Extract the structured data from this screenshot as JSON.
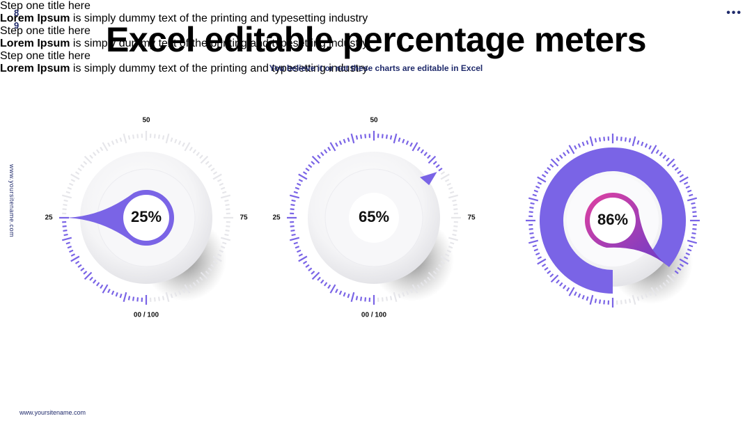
{
  "page_number": "89",
  "title": "Excel editable percentage meters",
  "subtitle": "You believe it or not these charts are editable in Excel",
  "side_url": "www.yoursitename.com",
  "footer_url": "www.yoursitename.com",
  "chart_data": [
    {
      "type": "gauge",
      "style": "pointer",
      "value": 25,
      "value_label": "25%",
      "color": "#7a64e6",
      "ylim": [
        0,
        100
      ],
      "yticks": [
        {
          "value": 0,
          "label": "00 / 100"
        },
        25,
        50,
        75
      ],
      "step_title": "Step one title here",
      "description_bold": "Lorem Ipsum",
      "description": "is simply dummy text of the printing and typesetting industry"
    },
    {
      "type": "gauge",
      "style": "needle",
      "value": 65,
      "value_label": "65%",
      "color": "#7a64e6",
      "ylim": [
        0,
        100
      ],
      "yticks": [
        {
          "value": 0,
          "label": "00 / 100"
        },
        25,
        50,
        75
      ],
      "step_title": "Step one title here",
      "description_bold": "Lorem Ipsum",
      "description": "is simply dummy text of the printing and typesetting industry"
    },
    {
      "type": "gauge",
      "style": "donut",
      "value": 86,
      "value_label": "86%",
      "color": "#7a64e6",
      "ylim": [
        0,
        100
      ],
      "step_title": "Step one title here",
      "description_bold": "Lorem Ipsum",
      "description": "is simply dummy text of the printing and typesetting industry"
    }
  ]
}
